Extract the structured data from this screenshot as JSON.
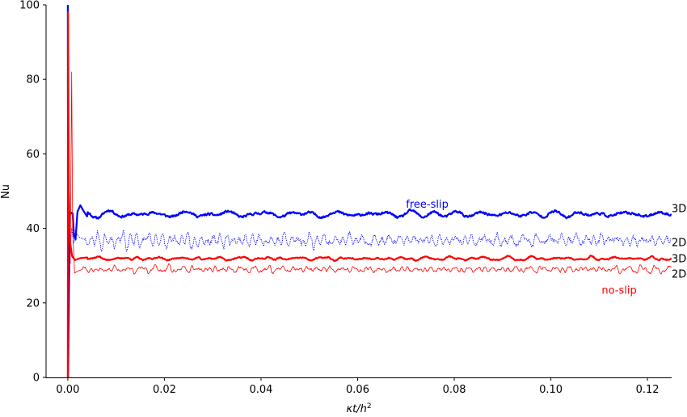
{
  "chart_data": {
    "type": "line",
    "title": "",
    "xlabel": "κt/h²",
    "xlabel_parts": {
      "base": "κt/h",
      "sup": "2"
    },
    "ylabel": "Nu",
    "xlim": [
      -0.0045,
      0.125
    ],
    "ylim": [
      0,
      100
    ],
    "xticks": [
      0.0,
      0.02,
      0.04,
      0.06,
      0.08,
      0.1,
      0.12
    ],
    "xtick_labels": [
      "0.00",
      "0.02",
      "0.04",
      "0.06",
      "0.08",
      "0.10",
      "0.12"
    ],
    "yticks": [
      0,
      20,
      40,
      60,
      80,
      100
    ],
    "ytick_labels": [
      "0",
      "20",
      "40",
      "60",
      "80",
      "100"
    ],
    "grid": false,
    "spines": "left-bottom",
    "series": [
      {
        "group": "free-slip",
        "label": "3D",
        "color": "#0000ff",
        "style": "solid",
        "width": 2.2,
        "mean": 43.8,
        "amp": 0.9,
        "seed": 11,
        "wavelength": 0.0035,
        "initial": [
          [
            0.0,
            100
          ],
          [
            5e-05,
            0
          ],
          [
            0.0004,
            43.5
          ],
          [
            0.0007,
            44.2
          ],
          [
            0.001,
            44.0
          ],
          [
            0.0013,
            38
          ],
          [
            0.0016,
            37
          ],
          [
            0.002,
            44.5
          ],
          [
            0.0026,
            46.2
          ],
          [
            0.0032,
            44.8
          ],
          [
            0.004,
            43.2
          ]
        ]
      },
      {
        "group": "free-slip",
        "label": "2D",
        "color": "#0000ff",
        "style": "dotted",
        "width": 0.9,
        "mean": 36.8,
        "amp": 2.2,
        "seed": 23,
        "wavelength": 0.0012,
        "initial": [
          [
            0.0,
            28
          ],
          [
            0.0008,
            40
          ],
          [
            0.0012,
            36
          ],
          [
            0.0018,
            38.5
          ],
          [
            0.0025,
            37.5
          ],
          [
            0.0035,
            37
          ]
        ]
      },
      {
        "group": "no-slip",
        "label": "3D",
        "color": "#ff0000",
        "style": "solid",
        "width": 2.2,
        "mean": 31.9,
        "amp": 0.45,
        "seed": 37,
        "wavelength": 0.003,
        "initial": [
          [
            0.0,
            0
          ],
          [
            5e-05,
            98
          ],
          [
            0.0002,
            50
          ],
          [
            0.0005,
            36
          ],
          [
            0.0009,
            32.5
          ],
          [
            0.0015,
            31.5
          ],
          [
            0.0025,
            32.0
          ],
          [
            0.004,
            32.2
          ]
        ]
      },
      {
        "group": "no-slip",
        "label": "2D",
        "color": "#ff0000",
        "style": "thin",
        "width": 0.8,
        "mean": 29.0,
        "amp": 0.9,
        "seed": 53,
        "wavelength": 0.0012,
        "initial": [
          [
            0.0,
            30
          ],
          [
            0.0005,
            30.5
          ],
          [
            0.0008,
            82
          ],
          [
            0.001,
            40
          ],
          [
            0.0014,
            28
          ],
          [
            0.002,
            28.5
          ],
          [
            0.003,
            29.0
          ]
        ]
      }
    ],
    "annotations": [
      {
        "text": "free-slip",
        "x": 0.07,
        "y": 45.5,
        "color": "#0000ff"
      },
      {
        "text": "no-slip",
        "x": 0.1105,
        "y": 22.5,
        "color": "#ff0000"
      }
    ],
    "end_labels": [
      {
        "text": "3D",
        "y": 45.3
      },
      {
        "text": "2D",
        "y": 36.2
      },
      {
        "text": "3D",
        "y": 31.9
      },
      {
        "text": "2D",
        "y": 27.8
      }
    ]
  }
}
